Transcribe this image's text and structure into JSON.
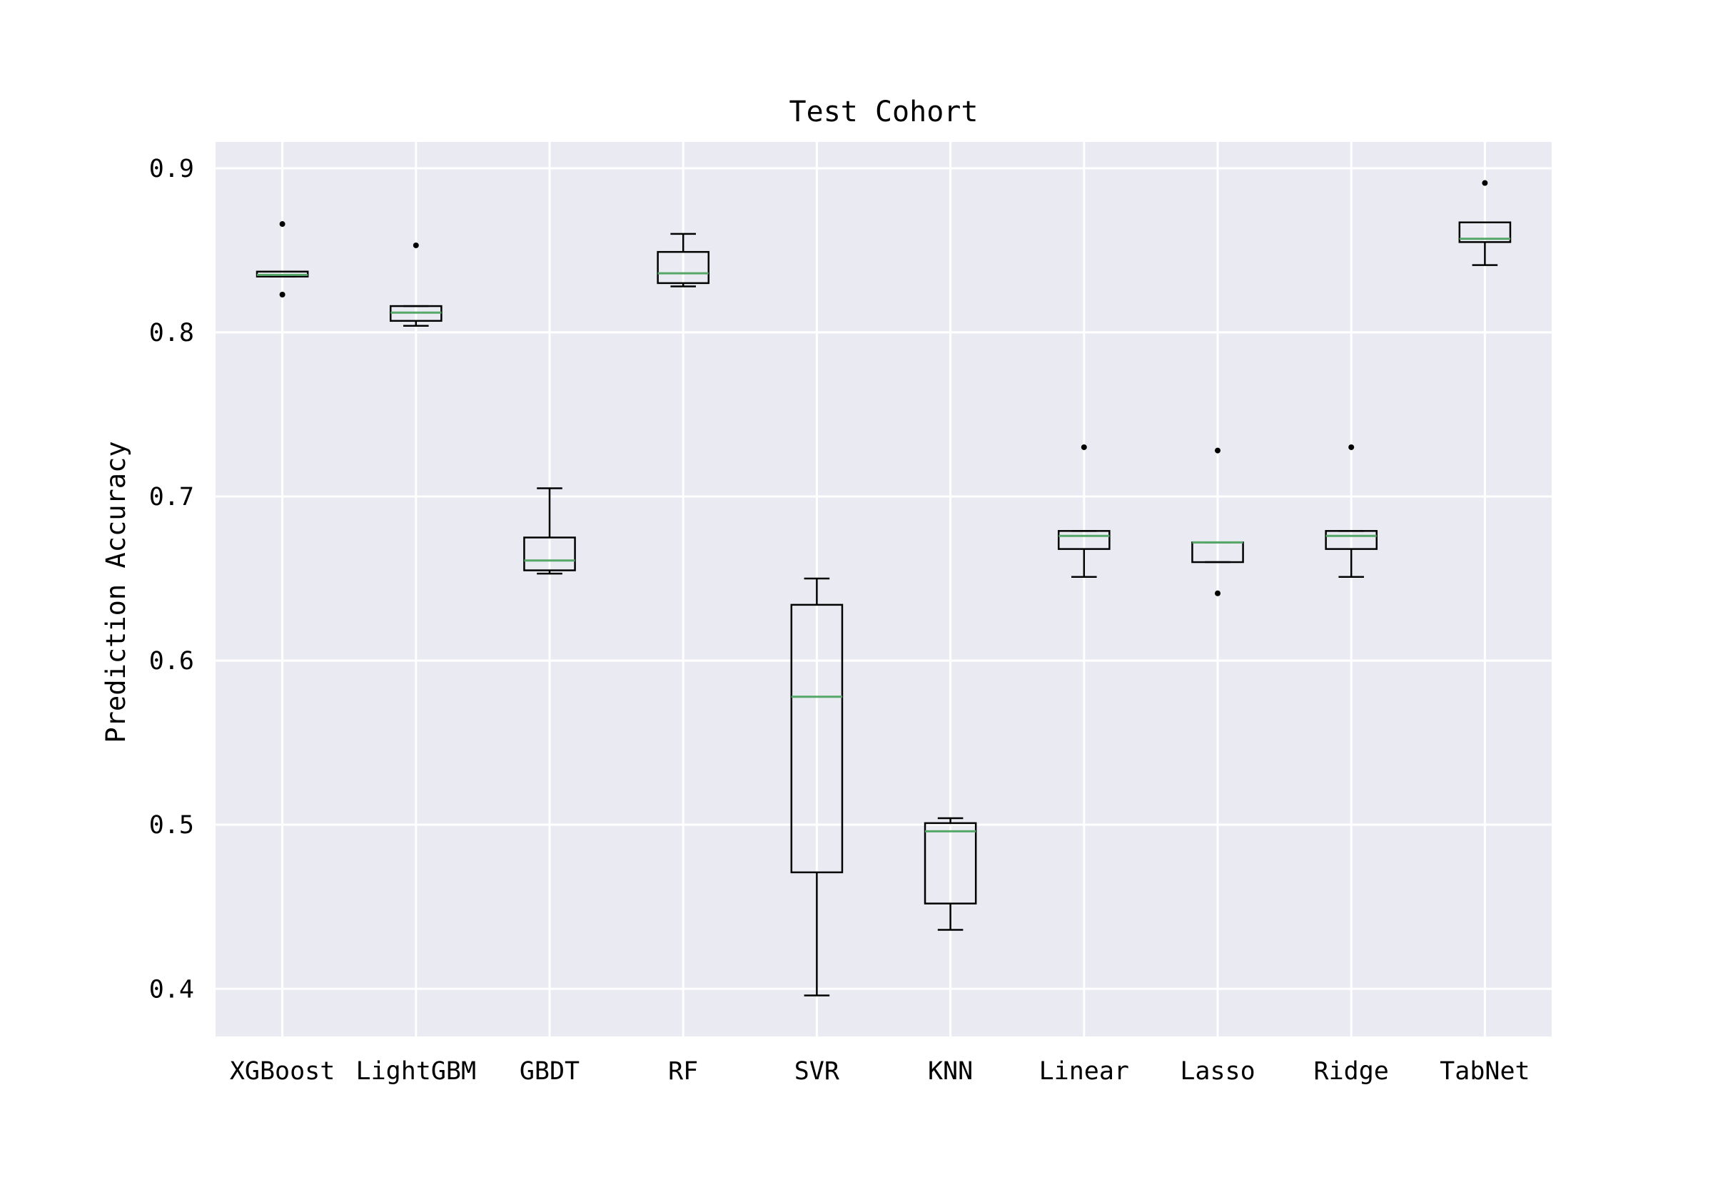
{
  "chart_data": {
    "type": "box",
    "title": "Test Cohort",
    "xlabel": "",
    "ylabel": "Prediction Accuracy",
    "ylim": [
      0.371,
      0.916
    ],
    "yticks": [
      0.4,
      0.5,
      0.6,
      0.7,
      0.8,
      0.9
    ],
    "ytick_labels": [
      "0.4",
      "0.5",
      "0.6",
      "0.7",
      "0.8",
      "0.9"
    ],
    "grid": true,
    "categories": [
      "XGBoost",
      "LightGBM",
      "GBDT",
      "RF",
      "SVR",
      "KNN",
      "Linear",
      "Lasso",
      "Ridge",
      "TabNet"
    ],
    "boxes": [
      {
        "name": "XGBoost",
        "whislo": 0.834,
        "q1": 0.834,
        "med": 0.835,
        "q3": 0.837,
        "whishi": 0.837,
        "fliers": [
          0.866,
          0.823
        ]
      },
      {
        "name": "LightGBM",
        "whislo": 0.804,
        "q1": 0.807,
        "med": 0.812,
        "q3": 0.816,
        "whishi": 0.816,
        "fliers": [
          0.853
        ]
      },
      {
        "name": "GBDT",
        "whislo": 0.653,
        "q1": 0.655,
        "med": 0.661,
        "q3": 0.675,
        "whishi": 0.705,
        "fliers": []
      },
      {
        "name": "RF",
        "whislo": 0.828,
        "q1": 0.83,
        "med": 0.836,
        "q3": 0.849,
        "whishi": 0.86,
        "fliers": []
      },
      {
        "name": "SVR",
        "whislo": 0.396,
        "q1": 0.471,
        "med": 0.578,
        "q3": 0.634,
        "whishi": 0.65,
        "fliers": []
      },
      {
        "name": "KNN",
        "whislo": 0.436,
        "q1": 0.452,
        "med": 0.496,
        "q3": 0.501,
        "whishi": 0.504,
        "fliers": []
      },
      {
        "name": "Linear",
        "whislo": 0.651,
        "q1": 0.668,
        "med": 0.676,
        "q3": 0.679,
        "whishi": 0.679,
        "fliers": [
          0.73
        ]
      },
      {
        "name": "Lasso",
        "whislo": 0.66,
        "q1": 0.66,
        "med": 0.672,
        "q3": 0.672,
        "whishi": 0.672,
        "fliers": [
          0.728,
          0.641
        ]
      },
      {
        "name": "Ridge",
        "whislo": 0.651,
        "q1": 0.668,
        "med": 0.676,
        "q3": 0.679,
        "whishi": 0.679,
        "fliers": [
          0.73
        ]
      },
      {
        "name": "TabNet",
        "whislo": 0.841,
        "q1": 0.855,
        "med": 0.857,
        "q3": 0.867,
        "whishi": 0.867,
        "fliers": [
          0.891
        ]
      }
    ],
    "colors": {
      "plot_background": "#eaeaf2",
      "grid": "#ffffff",
      "box": "#000000",
      "median": "#55a868",
      "flier": "#000000"
    }
  }
}
